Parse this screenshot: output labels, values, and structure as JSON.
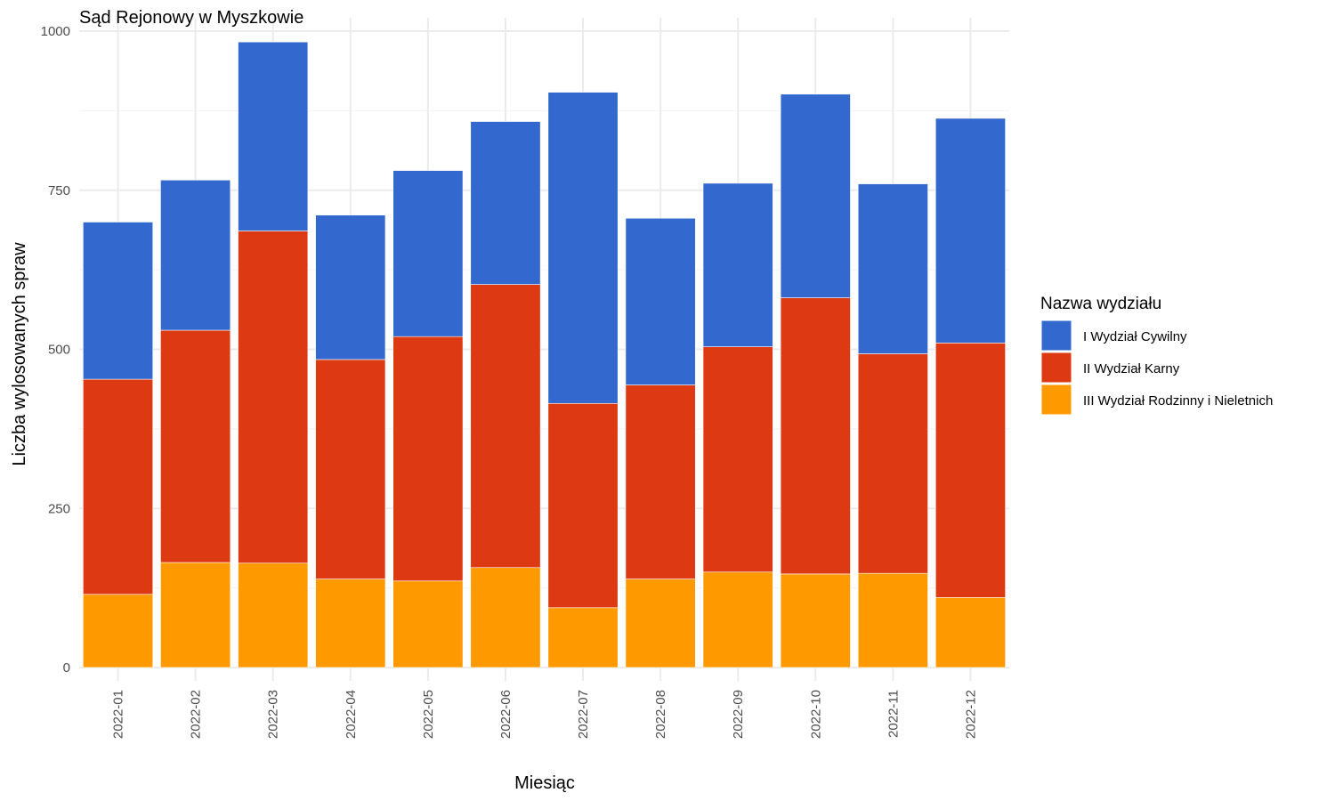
{
  "chart_data": {
    "type": "bar",
    "stacked": true,
    "title": "Sąd Rejonowy w Myszkowie",
    "xlabel": "Miesiąc",
    "ylabel": "Liczba wylosowanych spraw",
    "ylim": [
      0,
      1000
    ],
    "yticks": [
      0,
      250,
      500,
      750,
      1000
    ],
    "grid": true,
    "legend": {
      "title": "Nazwa wydziału",
      "position": "right"
    },
    "categories": [
      "2022-01",
      "2022-02",
      "2022-03",
      "2022-04",
      "2022-05",
      "2022-06",
      "2022-07",
      "2022-08",
      "2022-09",
      "2022-10",
      "2022-11",
      "2022-12"
    ],
    "series": [
      {
        "name": "I Wydział Cywilny",
        "color": "#3369CE",
        "values": [
          247,
          236,
          297,
          227,
          261,
          256,
          489,
          262,
          257,
          320,
          267,
          353
        ]
      },
      {
        "name": "II Wydział Karny",
        "color": "#DD3912",
        "values": [
          338,
          365,
          522,
          345,
          384,
          445,
          321,
          305,
          354,
          434,
          345,
          400
        ]
      },
      {
        "name": "III Wydział Rodzinny i Nieletnich",
        "color": "#FE9900",
        "values": [
          115,
          165,
          164,
          139,
          136,
          157,
          94,
          139,
          150,
          147,
          148,
          110
        ]
      }
    ]
  }
}
